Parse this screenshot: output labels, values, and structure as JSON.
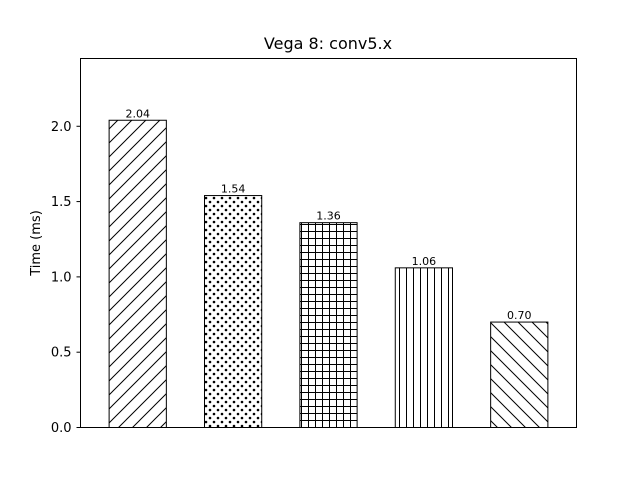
{
  "chart_data": {
    "type": "bar",
    "title": "Vega 8: conv5.x",
    "xlabel": "",
    "ylabel": "Time (ms)",
    "ylim": [
      0,
      2.45
    ],
    "yticks": [
      0.0,
      0.5,
      1.0,
      1.5,
      2.0
    ],
    "ytick_labels": [
      "0.0",
      "0.5",
      "1.0",
      "1.5",
      "2.0"
    ],
    "categories": [
      "",
      "",
      "",
      "",
      ""
    ],
    "values": [
      2.04,
      1.54,
      1.36,
      1.06,
      0.7
    ],
    "data_labels": [
      "2.04",
      "1.54",
      "1.36",
      "1.06",
      "0.70"
    ],
    "hatches": [
      "diagonal-up",
      "dots",
      "grid",
      "vertical",
      "diagonal-down"
    ],
    "bar_fill": "#ffffff",
    "bar_edge": "#000000",
    "grid": false,
    "legend": "none"
  }
}
